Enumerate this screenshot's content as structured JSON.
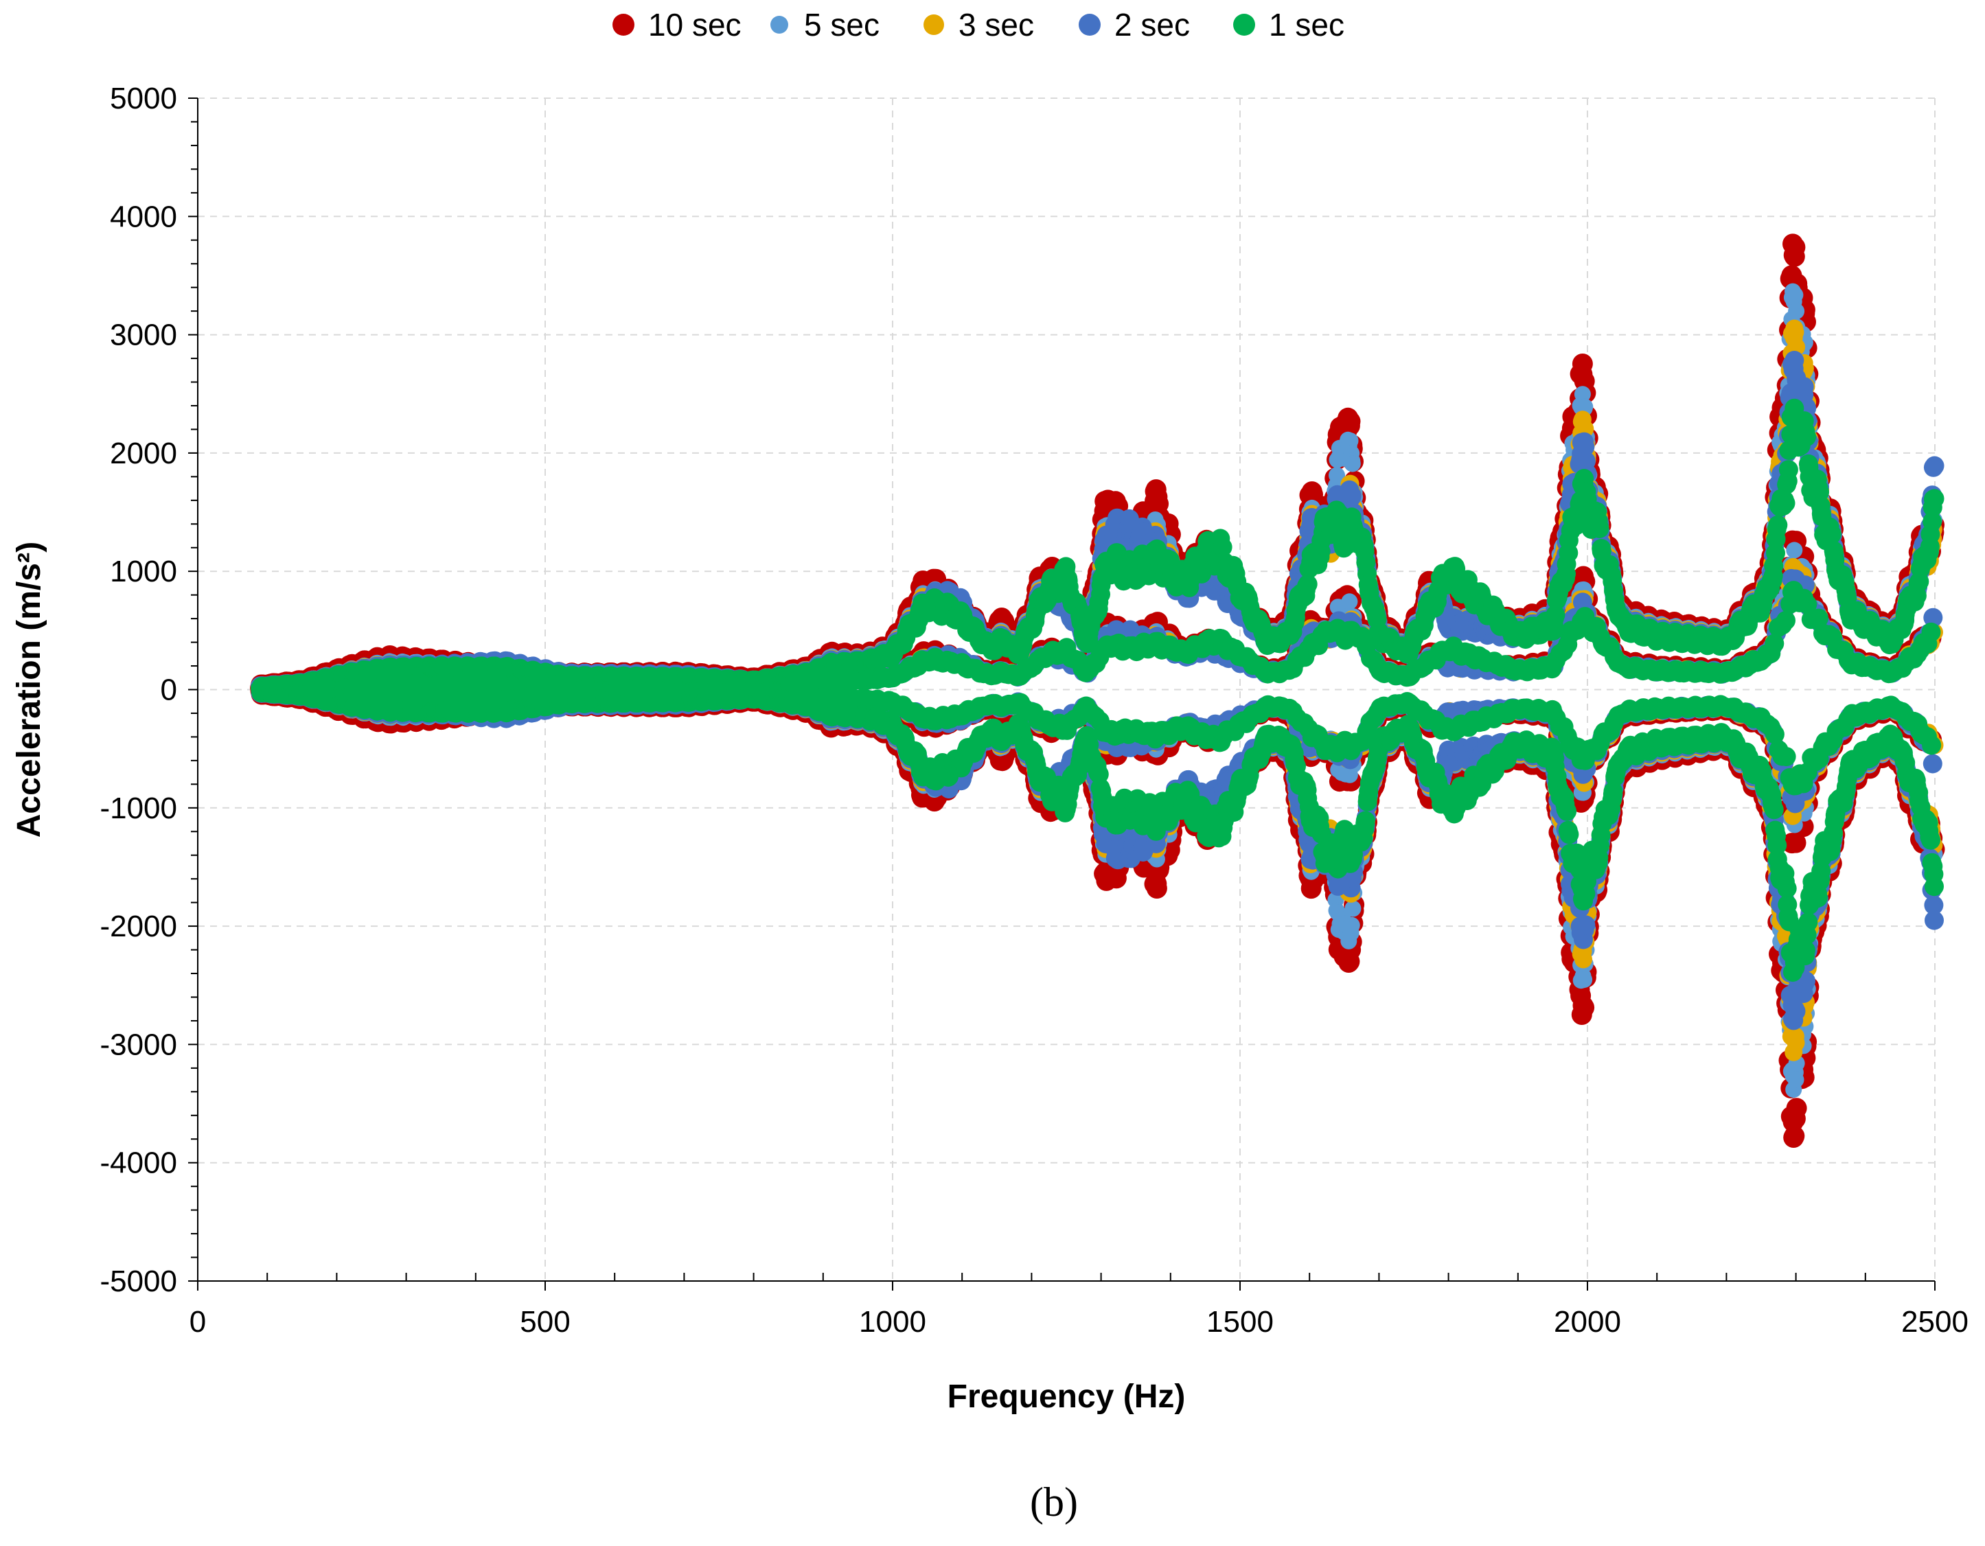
{
  "chart_data": {
    "type": "scatter",
    "title": "",
    "caption": "(b)",
    "xlabel": "Frequency (Hz)",
    "ylabel": "Acceleration (m/s²)",
    "xlim": [
      0,
      2500
    ],
    "ylim": [
      -5000,
      5000
    ],
    "x_ticks": [
      0,
      500,
      1000,
      1500,
      2000,
      2500
    ],
    "y_ticks": [
      -5000,
      -4000,
      -3000,
      -2000,
      -1000,
      0,
      1000,
      2000,
      3000,
      4000,
      5000
    ],
    "x_minor_step": 100,
    "y_minor_step": 200,
    "grid": "dashed major gridlines",
    "legend_position": "top-center",
    "series": [
      {
        "name": "10 sec",
        "color": "#C00000",
        "envelope": [
          [
            90,
            40
          ],
          [
            150,
            80
          ],
          [
            230,
            230
          ],
          [
            270,
            290
          ],
          [
            340,
            260
          ],
          [
            440,
            200
          ],
          [
            530,
            140
          ],
          [
            700,
            150
          ],
          [
            800,
            100
          ],
          [
            880,
            200
          ],
          [
            910,
            320
          ],
          [
            960,
            300
          ],
          [
            1000,
            400
          ],
          [
            1050,
            1000
          ],
          [
            1090,
            800
          ],
          [
            1140,
            450
          ],
          [
            1160,
            650
          ],
          [
            1180,
            400
          ],
          [
            1220,
            1100
          ],
          [
            1250,
            900
          ],
          [
            1280,
            500
          ],
          [
            1310,
            1800
          ],
          [
            1340,
            1300
          ],
          [
            1380,
            1700
          ],
          [
            1420,
            1000
          ],
          [
            1450,
            1300
          ],
          [
            1470,
            1100
          ],
          [
            1540,
            500
          ],
          [
            1570,
            600
          ],
          [
            1600,
            1700
          ],
          [
            1630,
            1500
          ],
          [
            1650,
            2700
          ],
          [
            1670,
            1700
          ],
          [
            1700,
            600
          ],
          [
            1740,
            400
          ],
          [
            1780,
            1050
          ],
          [
            1800,
            700
          ],
          [
            1900,
            600
          ],
          [
            1950,
            700
          ],
          [
            1990,
            3000
          ],
          [
            2010,
            1800
          ],
          [
            2050,
            700
          ],
          [
            2100,
            600
          ],
          [
            2200,
            500
          ],
          [
            2260,
            1000
          ],
          [
            2300,
            4150
          ],
          [
            2330,
            2000
          ],
          [
            2380,
            800
          ],
          [
            2440,
            500
          ],
          [
            2480,
            1300
          ],
          [
            2500,
            1400
          ]
        ]
      },
      {
        "name": "5 sec",
        "color": "#5B9BD5",
        "envelope": [
          [
            90,
            35
          ],
          [
            150,
            70
          ],
          [
            230,
            190
          ],
          [
            270,
            240
          ],
          [
            340,
            230
          ],
          [
            440,
            180
          ],
          [
            530,
            130
          ],
          [
            700,
            130
          ],
          [
            800,
            90
          ],
          [
            880,
            180
          ],
          [
            910,
            280
          ],
          [
            960,
            280
          ],
          [
            1000,
            380
          ],
          [
            1050,
            880
          ],
          [
            1090,
            760
          ],
          [
            1140,
            420
          ],
          [
            1160,
            520
          ],
          [
            1180,
            380
          ],
          [
            1220,
            1000
          ],
          [
            1250,
            850
          ],
          [
            1280,
            480
          ],
          [
            1310,
            1550
          ],
          [
            1340,
            1250
          ],
          [
            1380,
            1450
          ],
          [
            1420,
            950
          ],
          [
            1450,
            1200
          ],
          [
            1470,
            1050
          ],
          [
            1540,
            480
          ],
          [
            1570,
            550
          ],
          [
            1600,
            1550
          ],
          [
            1630,
            1450
          ],
          [
            1650,
            2450
          ],
          [
            1670,
            1650
          ],
          [
            1700,
            560
          ],
          [
            1740,
            380
          ],
          [
            1780,
            950
          ],
          [
            1800,
            650
          ],
          [
            1900,
            560
          ],
          [
            1950,
            650
          ],
          [
            1990,
            2700
          ],
          [
            2010,
            1750
          ],
          [
            2050,
            650
          ],
          [
            2100,
            560
          ],
          [
            2200,
            480
          ],
          [
            2260,
            950
          ],
          [
            2300,
            3700
          ],
          [
            2330,
            1950
          ],
          [
            2380,
            760
          ],
          [
            2440,
            480
          ],
          [
            2480,
            1200
          ],
          [
            2500,
            1450
          ]
        ]
      },
      {
        "name": "3 sec",
        "color": "#E5A800",
        "envelope": [
          [
            90,
            35
          ],
          [
            150,
            65
          ],
          [
            230,
            180
          ],
          [
            270,
            220
          ],
          [
            340,
            210
          ],
          [
            440,
            170
          ],
          [
            530,
            120
          ],
          [
            700,
            120
          ],
          [
            800,
            85
          ],
          [
            880,
            170
          ],
          [
            910,
            260
          ],
          [
            960,
            270
          ],
          [
            1000,
            360
          ],
          [
            1050,
            850
          ],
          [
            1090,
            740
          ],
          [
            1140,
            400
          ],
          [
            1160,
            500
          ],
          [
            1180,
            360
          ],
          [
            1220,
            970
          ],
          [
            1250,
            820
          ],
          [
            1280,
            460
          ],
          [
            1310,
            1500
          ],
          [
            1340,
            1200
          ],
          [
            1380,
            1350
          ],
          [
            1420,
            920
          ],
          [
            1450,
            1150
          ],
          [
            1470,
            1000
          ],
          [
            1540,
            460
          ],
          [
            1570,
            530
          ],
          [
            1600,
            1500
          ],
          [
            1630,
            1400
          ],
          [
            1650,
            1850
          ],
          [
            1670,
            1600
          ],
          [
            1700,
            540
          ],
          [
            1740,
            360
          ],
          [
            1780,
            920
          ],
          [
            1800,
            630
          ],
          [
            1900,
            540
          ],
          [
            1950,
            630
          ],
          [
            1990,
            2450
          ],
          [
            2010,
            1700
          ],
          [
            2050,
            630
          ],
          [
            2100,
            540
          ],
          [
            2200,
            460
          ],
          [
            2260,
            920
          ],
          [
            2300,
            3350
          ],
          [
            2330,
            1900
          ],
          [
            2380,
            740
          ],
          [
            2440,
            460
          ],
          [
            2480,
            1150
          ],
          [
            2500,
            1400
          ]
        ]
      },
      {
        "name": "2 sec",
        "color": "#4472C4",
        "envelope": [
          [
            90,
            30
          ],
          [
            150,
            60
          ],
          [
            230,
            170
          ],
          [
            270,
            210
          ],
          [
            340,
            210
          ],
          [
            440,
            250
          ],
          [
            530,
            140
          ],
          [
            700,
            130
          ],
          [
            800,
            80
          ],
          [
            880,
            160
          ],
          [
            910,
            250
          ],
          [
            960,
            260
          ],
          [
            1000,
            350
          ],
          [
            1050,
            820
          ],
          [
            1090,
            850
          ],
          [
            1140,
            390
          ],
          [
            1160,
            480
          ],
          [
            1180,
            350
          ],
          [
            1220,
            940
          ],
          [
            1250,
            800
          ],
          [
            1280,
            450
          ],
          [
            1310,
            1450
          ],
          [
            1340,
            1450
          ],
          [
            1380,
            1300
          ],
          [
            1420,
            900
          ],
          [
            1450,
            1100
          ],
          [
            1470,
            980
          ],
          [
            1540,
            450
          ],
          [
            1570,
            520
          ],
          [
            1600,
            1450
          ],
          [
            1630,
            1500
          ],
          [
            1650,
            1800
          ],
          [
            1670,
            1550
          ],
          [
            1700,
            520
          ],
          [
            1740,
            350
          ],
          [
            1780,
            900
          ],
          [
            1800,
            620
          ],
          [
            1900,
            520
          ],
          [
            1950,
            620
          ],
          [
            1990,
            2250
          ],
          [
            2010,
            1650
          ],
          [
            2050,
            620
          ],
          [
            2100,
            520
          ],
          [
            2200,
            450
          ],
          [
            2260,
            900
          ],
          [
            2300,
            3050
          ],
          [
            2330,
            1850
          ],
          [
            2380,
            720
          ],
          [
            2440,
            450
          ],
          [
            2480,
            1100
          ],
          [
            2500,
            2000
          ]
        ]
      },
      {
        "name": "1 sec",
        "color": "#00B050",
        "envelope": [
          [
            90,
            25
          ],
          [
            150,
            55
          ],
          [
            230,
            160
          ],
          [
            270,
            190
          ],
          [
            340,
            200
          ],
          [
            440,
            200
          ],
          [
            530,
            120
          ],
          [
            700,
            110
          ],
          [
            800,
            80
          ],
          [
            880,
            150
          ],
          [
            910,
            230
          ],
          [
            960,
            250
          ],
          [
            1000,
            330
          ],
          [
            1050,
            800
          ],
          [
            1090,
            720
          ],
          [
            1140,
            380
          ],
          [
            1160,
            460
          ],
          [
            1180,
            340
          ],
          [
            1220,
            900
          ],
          [
            1250,
            1050
          ],
          [
            1280,
            440
          ],
          [
            1310,
            1200
          ],
          [
            1340,
            1100
          ],
          [
            1380,
            1200
          ],
          [
            1420,
            1000
          ],
          [
            1450,
            1250
          ],
          [
            1470,
            1300
          ],
          [
            1540,
            440
          ],
          [
            1570,
            500
          ],
          [
            1600,
            1100
          ],
          [
            1630,
            1600
          ],
          [
            1650,
            1450
          ],
          [
            1670,
            1500
          ],
          [
            1700,
            500
          ],
          [
            1740,
            340
          ],
          [
            1780,
            850
          ],
          [
            1800,
            1100
          ],
          [
            1900,
            500
          ],
          [
            1950,
            600
          ],
          [
            1990,
            1850
          ],
          [
            2010,
            1600
          ],
          [
            2050,
            600
          ],
          [
            2100,
            500
          ],
          [
            2200,
            440
          ],
          [
            2260,
            880
          ],
          [
            2300,
            2600
          ],
          [
            2330,
            1800
          ],
          [
            2380,
            700
          ],
          [
            2440,
            440
          ],
          [
            2480,
            1050
          ],
          [
            2500,
            1700
          ]
        ]
      }
    ]
  }
}
